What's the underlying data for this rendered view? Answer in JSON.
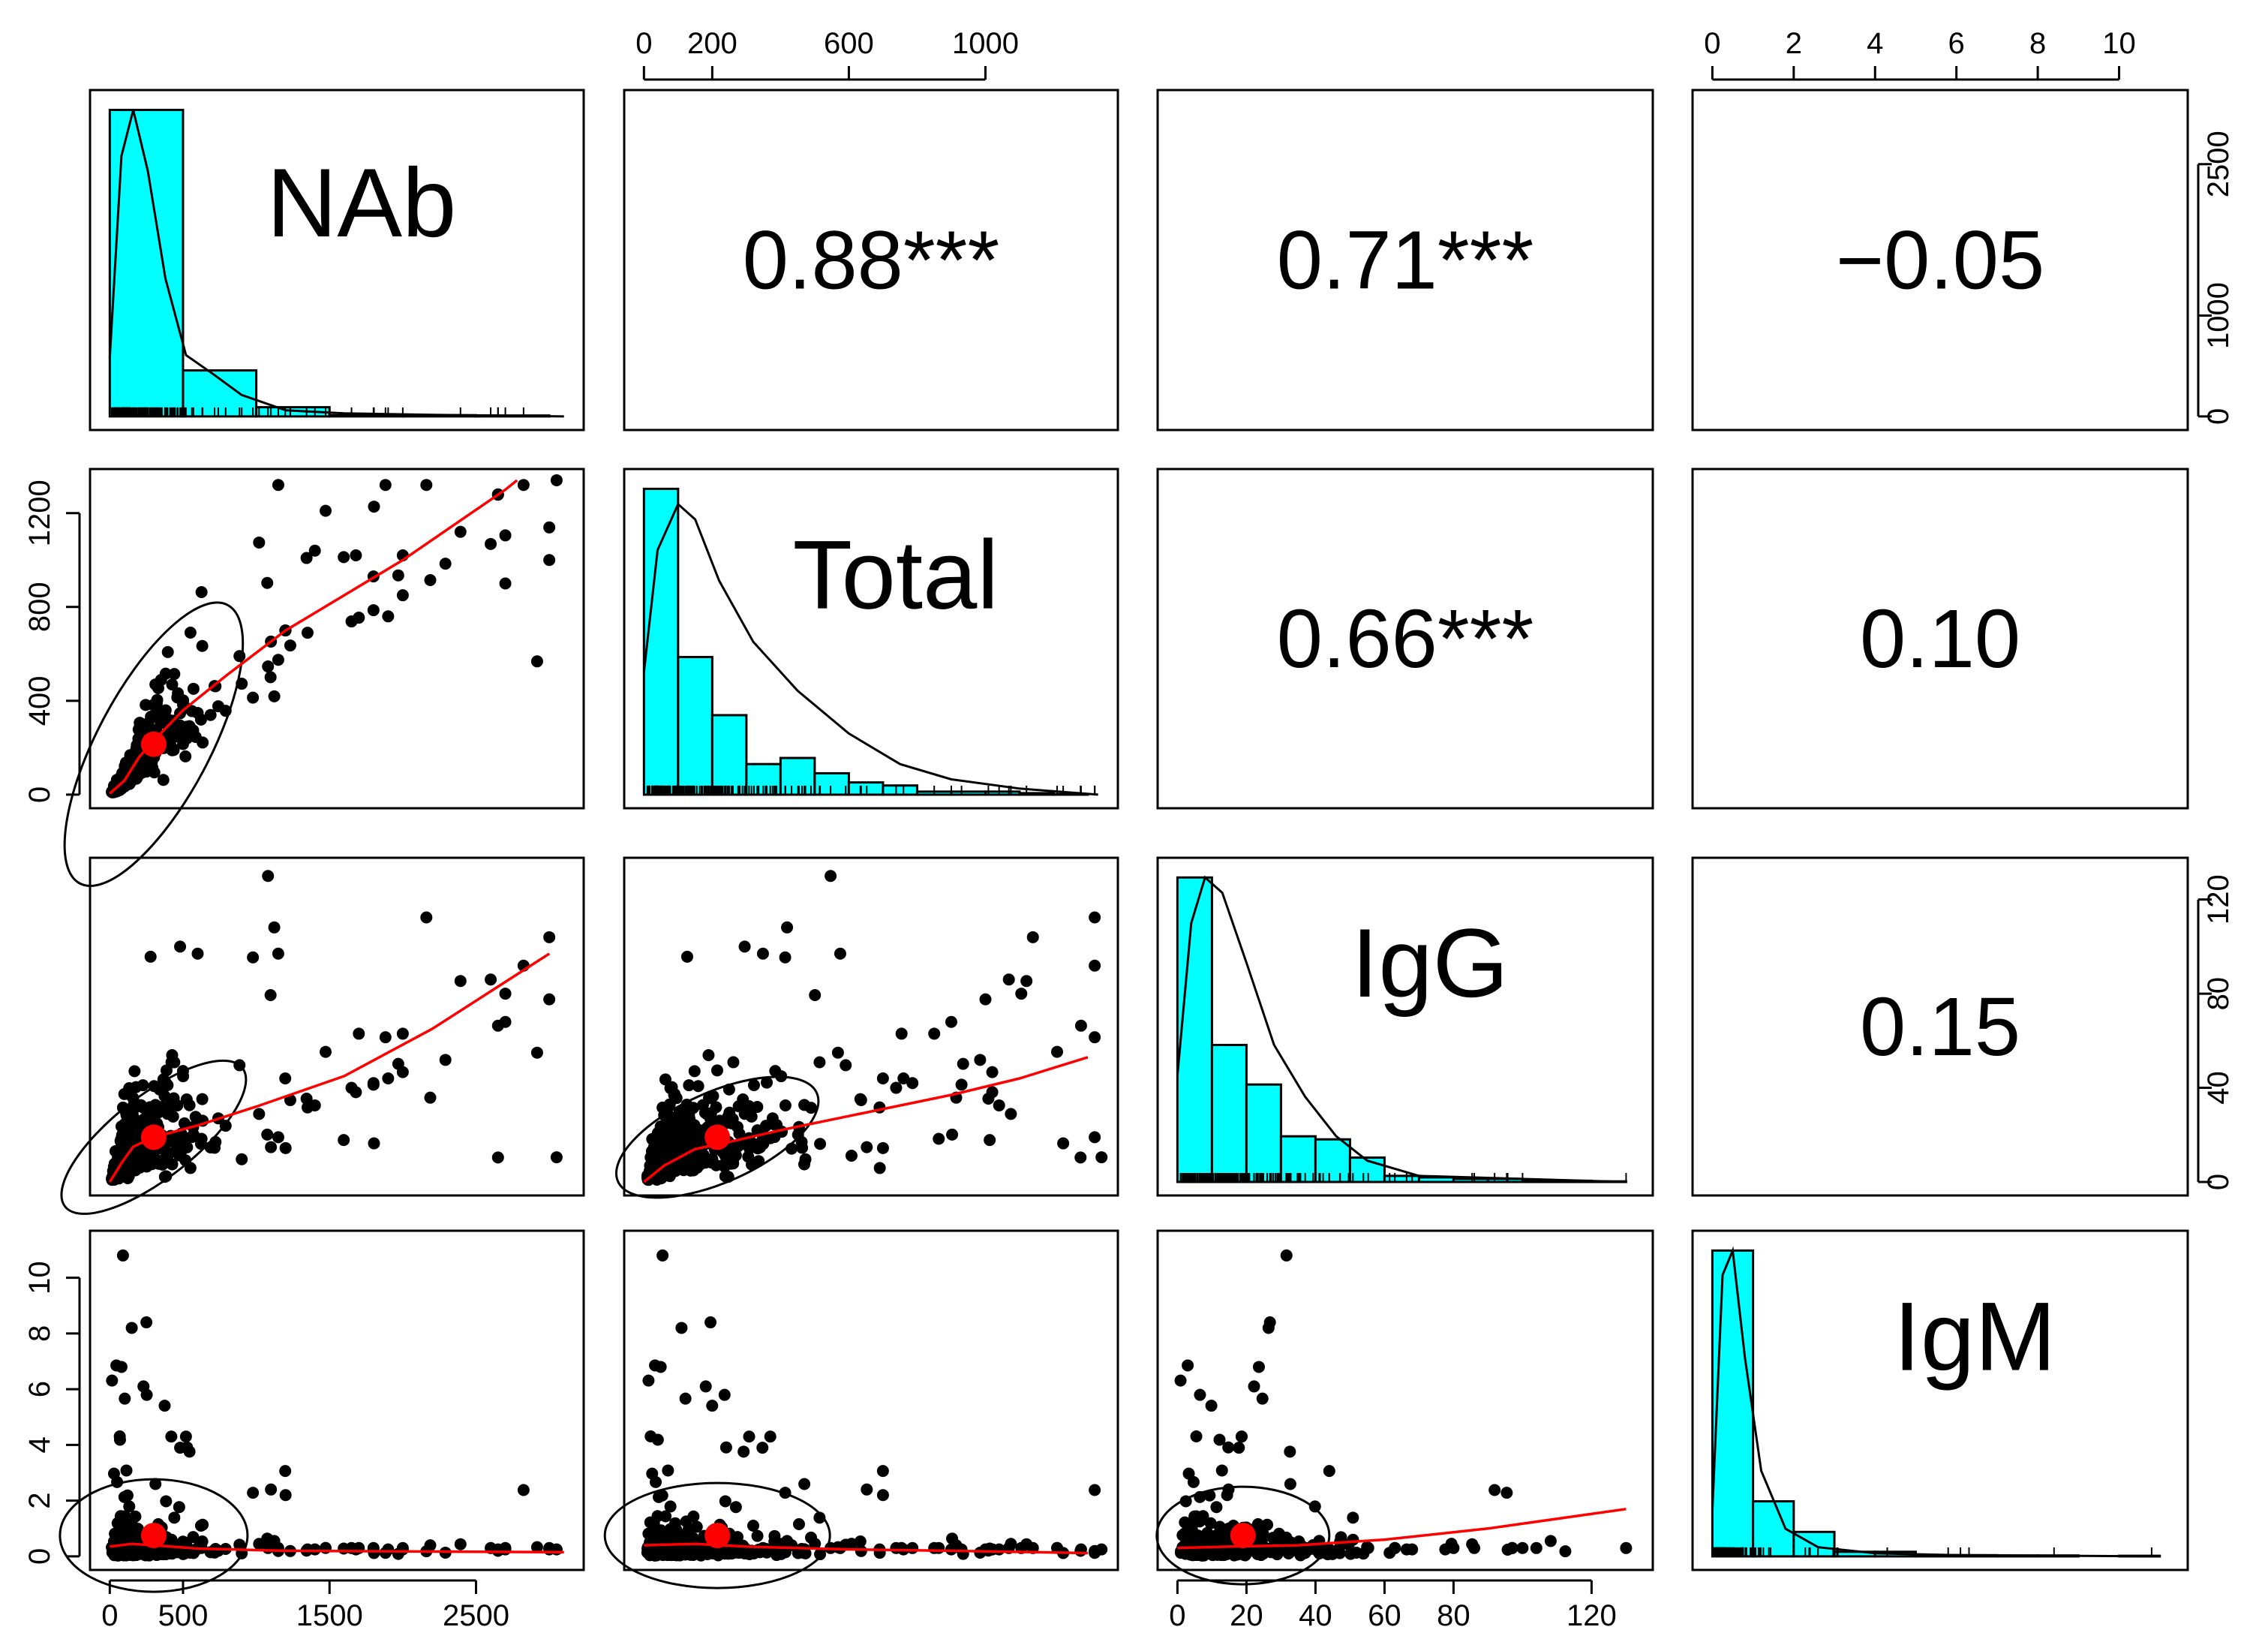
{
  "figure_title": "",
  "chart_data": {
    "type": "scatter",
    "subtype": "pairs-panels (scatterplot matrix with histograms, densities, loess fits and correlation coefficients)",
    "variables": [
      "NAb",
      "Total",
      "IgG",
      "IgM"
    ],
    "ranges": {
      "NAb": [
        0,
        3100
      ],
      "Total": [
        0,
        1330
      ],
      "IgG": [
        0,
        132
      ],
      "IgM": [
        0,
        11.2
      ]
    },
    "ticks": {
      "NAb_bottom": [
        "0",
        "500",
        "1500",
        "2500"
      ],
      "NAb_right": [
        "0",
        "1000",
        "2500"
      ],
      "Total_top": [
        "0",
        "200",
        "600",
        "1000"
      ],
      "Total_left": [
        "0",
        "400",
        "800",
        "1200"
      ],
      "IgG_bottom": [
        "0",
        "20",
        "40",
        "60",
        "80",
        "120"
      ],
      "IgG_right": [
        "0",
        "40",
        "80",
        "120"
      ],
      "IgM_top": [
        "0",
        "2",
        "4",
        "6",
        "8",
        "10"
      ],
      "IgM_left": [
        "0",
        "2",
        "4",
        "6",
        "8",
        "10"
      ]
    },
    "correlations": [
      {
        "row": "NAb",
        "col": "Total",
        "label": "0.88***"
      },
      {
        "row": "NAb",
        "col": "IgG",
        "label": "0.71***"
      },
      {
        "row": "NAb",
        "col": "IgM",
        "label": "−0.05"
      },
      {
        "row": "Total",
        "col": "IgG",
        "label": "0.66***"
      },
      {
        "row": "Total",
        "col": "IgM",
        "label": "0.10"
      },
      {
        "row": "IgG",
        "col": "IgM",
        "label": "0.15"
      }
    ],
    "histograms": {
      "NAb": {
        "breaks": [
          0,
          500,
          1000,
          1500,
          2000,
          2500,
          3000
        ],
        "heights": [
          1,
          0.15,
          0.03,
          0.004,
          0.004,
          0.003
        ]
      },
      "Total": {
        "breaks": [
          0,
          100,
          200,
          300,
          400,
          500,
          600,
          700,
          800,
          900,
          1000,
          1100,
          1200,
          1300
        ],
        "heights": [
          1,
          0.45,
          0.26,
          0.1,
          0.12,
          0.07,
          0.04,
          0.03,
          0.01,
          0.01,
          0.01,
          0.005,
          0.002
        ]
      },
      "IgG": {
        "breaks": [
          0,
          10,
          20,
          30,
          40,
          50,
          60,
          70,
          80,
          90,
          100,
          110,
          120,
          130
        ],
        "heights": [
          1,
          0.45,
          0.32,
          0.15,
          0.14,
          0.08,
          0.02,
          0.015,
          0.01,
          0.01,
          0.005,
          0.004,
          0.002
        ]
      },
      "IgM": {
        "breaks": [
          0,
          1,
          2,
          3,
          4,
          5,
          6,
          7,
          8,
          9,
          10,
          11
        ],
        "heights": [
          1,
          0.18,
          0.08,
          0.015,
          0.015,
          0.004,
          0.004,
          0.003,
          0.003,
          0.0,
          0.002
        ]
      }
    },
    "densities": {
      "NAb": [
        [
          0,
          0.19
        ],
        [
          80,
          0.85
        ],
        [
          160,
          1.0
        ],
        [
          260,
          0.8
        ],
        [
          380,
          0.45
        ],
        [
          520,
          0.2
        ],
        [
          700,
          0.14
        ],
        [
          900,
          0.07
        ],
        [
          1200,
          0.02
        ],
        [
          1600,
          0.01
        ],
        [
          2200,
          0.005
        ],
        [
          3100,
          0.0
        ]
      ],
      "Total": [
        [
          0,
          0.4
        ],
        [
          40,
          0.8
        ],
        [
          100,
          0.95
        ],
        [
          150,
          0.9
        ],
        [
          220,
          0.7
        ],
        [
          320,
          0.5
        ],
        [
          450,
          0.34
        ],
        [
          600,
          0.2
        ],
        [
          750,
          0.1
        ],
        [
          900,
          0.05
        ],
        [
          1100,
          0.02
        ],
        [
          1330,
          0.0
        ]
      ],
      "IgG": [
        [
          0,
          0.35
        ],
        [
          4,
          0.85
        ],
        [
          8,
          1.0
        ],
        [
          13,
          0.95
        ],
        [
          20,
          0.72
        ],
        [
          28,
          0.45
        ],
        [
          37,
          0.28
        ],
        [
          46,
          0.15
        ],
        [
          55,
          0.07
        ],
        [
          70,
          0.02
        ],
        [
          100,
          0.01
        ],
        [
          130,
          0.0
        ]
      ],
      "IgM": [
        [
          0,
          0.15
        ],
        [
          0.25,
          0.92
        ],
        [
          0.5,
          1.0
        ],
        [
          0.8,
          0.65
        ],
        [
          1.2,
          0.28
        ],
        [
          1.8,
          0.09
        ],
        [
          2.6,
          0.03
        ],
        [
          4,
          0.01
        ],
        [
          6,
          0.004
        ],
        [
          11,
          0.0
        ]
      ]
    },
    "means": {
      "NAb": 300,
      "Total": 215,
      "IgG": 19,
      "IgM": 0.75
    },
    "loess": {
      "Total~NAb": [
        [
          0,
          5
        ],
        [
          100,
          60
        ],
        [
          200,
          160
        ],
        [
          300,
          230
        ],
        [
          500,
          360
        ],
        [
          800,
          510
        ],
        [
          1200,
          700
        ],
        [
          2000,
          1000
        ],
        [
          2700,
          1300
        ],
        [
          2780,
          1340
        ]
      ],
      "IgG~NAb": [
        [
          0,
          0
        ],
        [
          80,
          8
        ],
        [
          160,
          15
        ],
        [
          300,
          19
        ],
        [
          600,
          24
        ],
        [
          1000,
          32
        ],
        [
          1600,
          45
        ],
        [
          2200,
          65
        ],
        [
          2700,
          85
        ],
        [
          3000,
          97
        ]
      ],
      "IgG~Total": [
        [
          0,
          0
        ],
        [
          60,
          7
        ],
        [
          150,
          14
        ],
        [
          250,
          17
        ],
        [
          400,
          22
        ],
        [
          600,
          28
        ],
        [
          900,
          37
        ],
        [
          1100,
          44
        ],
        [
          1300,
          53
        ]
      ],
      "IgM~NAb": [
        [
          0,
          0.35
        ],
        [
          150,
          0.45
        ],
        [
          300,
          0.4
        ],
        [
          600,
          0.28
        ],
        [
          1200,
          0.2
        ],
        [
          2000,
          0.18
        ],
        [
          3100,
          0.15
        ]
      ],
      "IgM~Total": [
        [
          0,
          0.4
        ],
        [
          150,
          0.45
        ],
        [
          300,
          0.35
        ],
        [
          600,
          0.25
        ],
        [
          900,
          0.2
        ],
        [
          1300,
          0.12
        ]
      ],
      "IgM~IgG": [
        [
          0,
          0.3
        ],
        [
          15,
          0.35
        ],
        [
          35,
          0.4
        ],
        [
          60,
          0.6
        ],
        [
          90,
          1.0
        ],
        [
          130,
          1.7
        ]
      ]
    },
    "ellipses": {
      "NAb-Total": {
        "rx": 420,
        "ry": 150,
        "angle": -62
      },
      "NAb-IgG": {
        "rx": 300,
        "ry": 110,
        "angle": -38
      },
      "Total-IgG": {
        "rx": 290,
        "ry": 120,
        "angle": -24
      },
      "NAb-IgM": {
        "rx": 250,
        "ry": 150,
        "angle": 0
      },
      "Total-IgM": {
        "rx": 300,
        "ry": 140,
        "angle": 0
      },
      "IgG-IgM": {
        "rx": 230,
        "ry": 130,
        "angle": 0
      }
    },
    "n_points": 380,
    "notable_points": {
      "NAb-Total": [
        [
          2650,
          1280
        ],
        [
          3000,
          1000
        ],
        [
          2700,
          900
        ],
        [
          2000,
          1020
        ],
        [
          1900,
          760
        ],
        [
          1680,
          1020
        ],
        [
          1400,
          1040
        ],
        [
          1350,
          690
        ],
        [
          1800,
          930
        ]
      ],
      "NAb-IgG": [
        [
          3000,
          104
        ],
        [
          1080,
          130
        ],
        [
          1150,
          97
        ],
        [
          480,
          100
        ],
        [
          600,
          97
        ],
        [
          2600,
          86
        ],
        [
          2700,
          80
        ],
        [
          2000,
          63
        ],
        [
          1700,
          63
        ],
        [
          1650,
          40
        ],
        [
          1800,
          42
        ]
      ],
      "NAb-IgM": [
        [
          90,
          10.8
        ],
        [
          150,
          8.2
        ],
        [
          250,
          8.4
        ],
        [
          80,
          6.8
        ],
        [
          230,
          6.1
        ],
        [
          420,
          4.3
        ],
        [
          520,
          4.3
        ],
        [
          480,
          3.9
        ],
        [
          1100,
          2.4
        ],
        [
          1200,
          2.2
        ],
        [
          2650,
          0.2
        ],
        [
          3050,
          0.25
        ]
      ]
    }
  }
}
